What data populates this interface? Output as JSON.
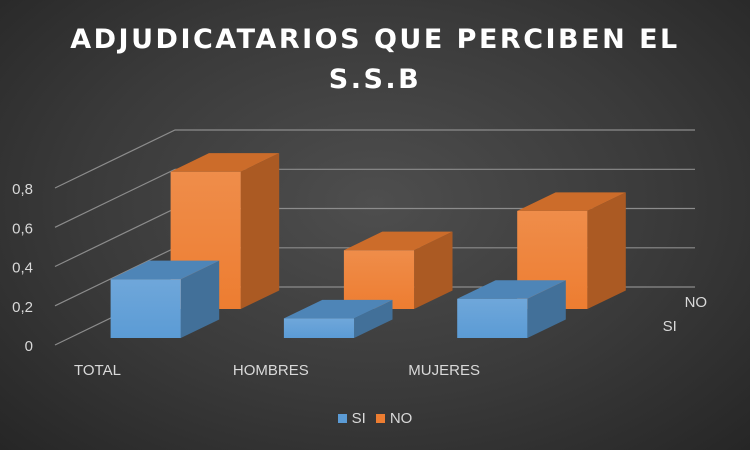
{
  "chart_data": {
    "type": "bar",
    "title": "ADJUDICATARIOS QUE PERCIBEN EL S.S.B",
    "categories": [
      "TOTAL",
      "HOMBRES",
      "MUJERES"
    ],
    "series": [
      {
        "name": "SI",
        "values": [
          0.3,
          0.1,
          0.2
        ],
        "color": "#5b9bd5"
      },
      {
        "name": "NO",
        "values": [
          0.7,
          0.3,
          0.5
        ],
        "color": "#ed7d31"
      }
    ],
    "ylim": [
      0,
      0.8
    ],
    "yticks": [
      "0",
      "0,2",
      "0,4",
      "0,6",
      "0,8"
    ],
    "depth_labels": [
      "SI",
      "NO"
    ],
    "legend_position": "bottom",
    "grid": true
  }
}
